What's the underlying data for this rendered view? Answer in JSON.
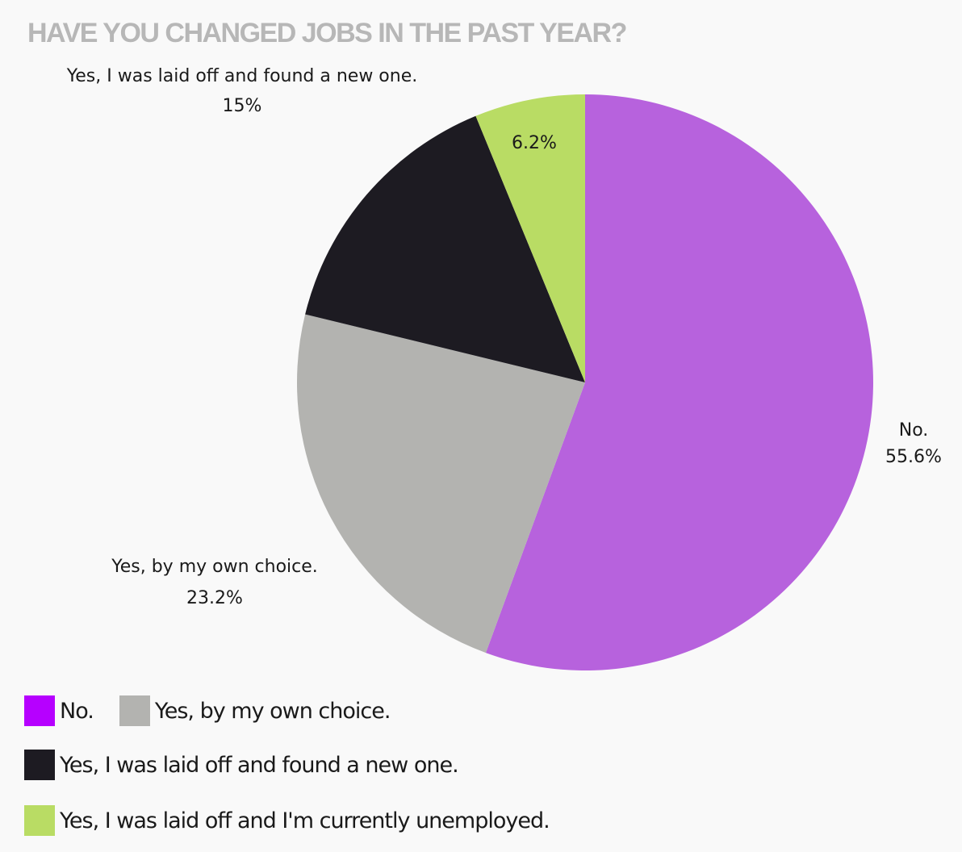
{
  "chart_data": {
    "type": "pie",
    "title": "HAVE YOU CHANGED JOBS IN THE PAST YEAR?",
    "slices": [
      {
        "label": "No.",
        "value": 55.6,
        "value_label": "55.6%",
        "color": "#b762dd",
        "legend_color": "#b600ff"
      },
      {
        "label": "Yes, by my own choice.",
        "value": 23.2,
        "value_label": "23.2%",
        "color": "#b3b3b0",
        "legend_color": "#b3b3b0"
      },
      {
        "label": "Yes, I was laid off and found a new one.",
        "value": 15,
        "value_label": "15%",
        "color": "#1d1b22",
        "legend_color": "#1d1b22"
      },
      {
        "label": "Yes, I was laid off and I'm currently unemployed.",
        "value": 6.2,
        "value_label": "6.2%",
        "color": "#b9dc64",
        "legend_color": "#b9dc64"
      }
    ],
    "legend_placement": "bottom-left"
  }
}
